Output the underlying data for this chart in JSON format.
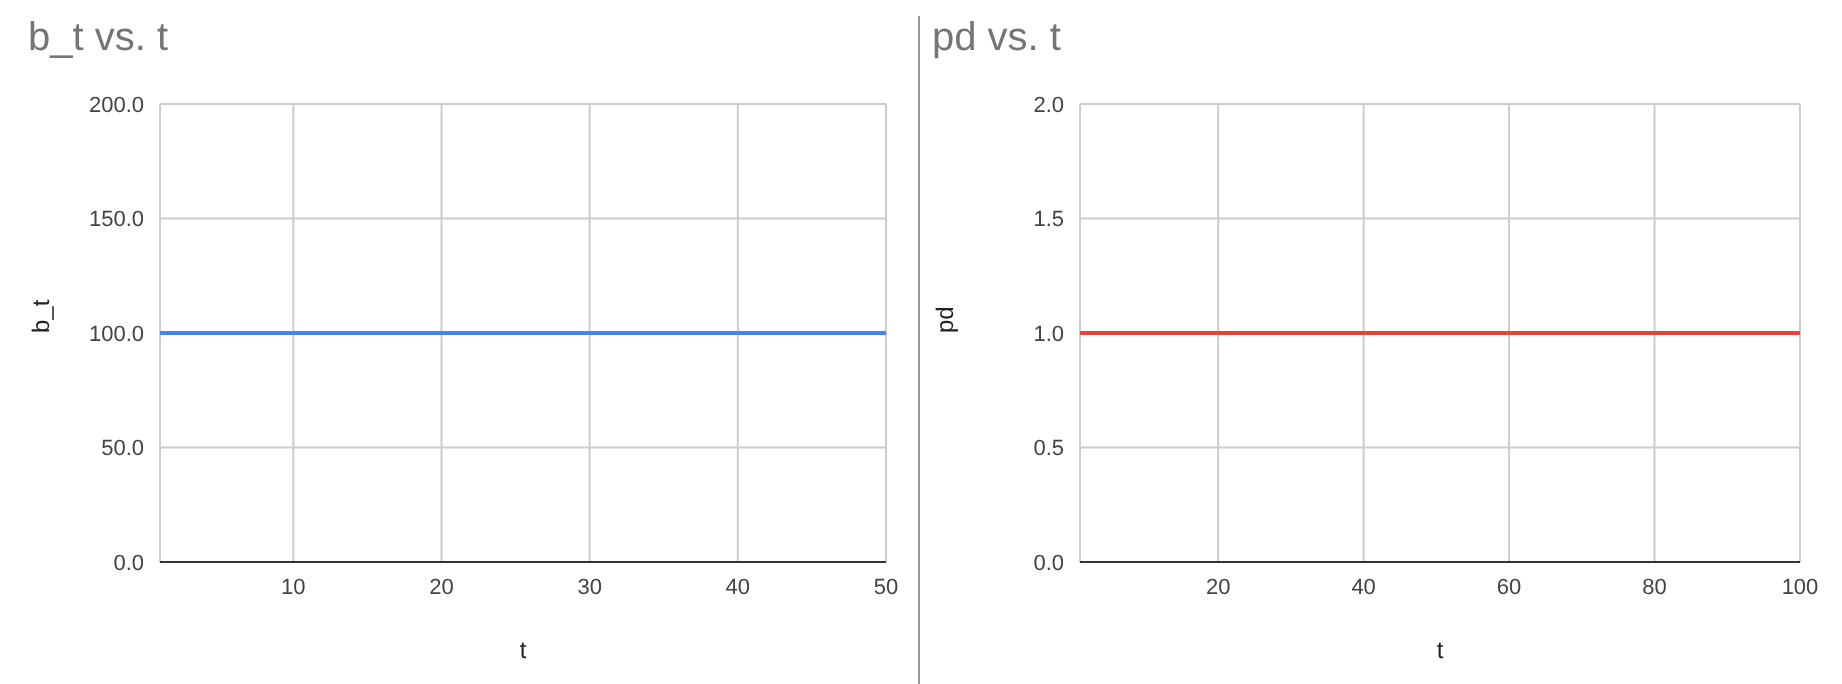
{
  "chart_data": [
    {
      "type": "line",
      "title": "b_t vs. t",
      "xlabel": "t",
      "ylabel": "b_t",
      "x": [
        1,
        50
      ],
      "series": [
        {
          "color": "#4285f4",
          "values": [
            100,
            100
          ]
        }
      ],
      "xlim": [
        1,
        50
      ],
      "xticks": [
        10,
        20,
        30,
        40,
        50
      ],
      "ylim": [
        0,
        200
      ],
      "yticks": [
        {
          "value": 0,
          "label": "0.0"
        },
        {
          "value": 50,
          "label": "50.0"
        },
        {
          "value": 100,
          "label": "100.0"
        },
        {
          "value": 150,
          "label": "150.0"
        },
        {
          "value": 200,
          "label": "200.0"
        }
      ],
      "grid": true,
      "legend": false,
      "marker": "none",
      "line_style": "solid"
    },
    {
      "type": "line",
      "title": "pd vs. t",
      "xlabel": "t",
      "ylabel": "pd",
      "x": [
        1,
        100
      ],
      "series": [
        {
          "color": "#ea4335",
          "values": [
            1,
            1
          ]
        }
      ],
      "xlim": [
        1,
        100
      ],
      "xticks": [
        20,
        40,
        60,
        80,
        100
      ],
      "ylim": [
        0,
        2
      ],
      "yticks": [
        {
          "value": 0,
          "label": "0.0"
        },
        {
          "value": 0.5,
          "label": "0.5"
        },
        {
          "value": 1,
          "label": "1.0"
        },
        {
          "value": 1.5,
          "label": "1.5"
        },
        {
          "value": 2,
          "label": "2.0"
        }
      ],
      "grid": true,
      "legend": false,
      "marker": "none",
      "line_style": "solid"
    }
  ]
}
